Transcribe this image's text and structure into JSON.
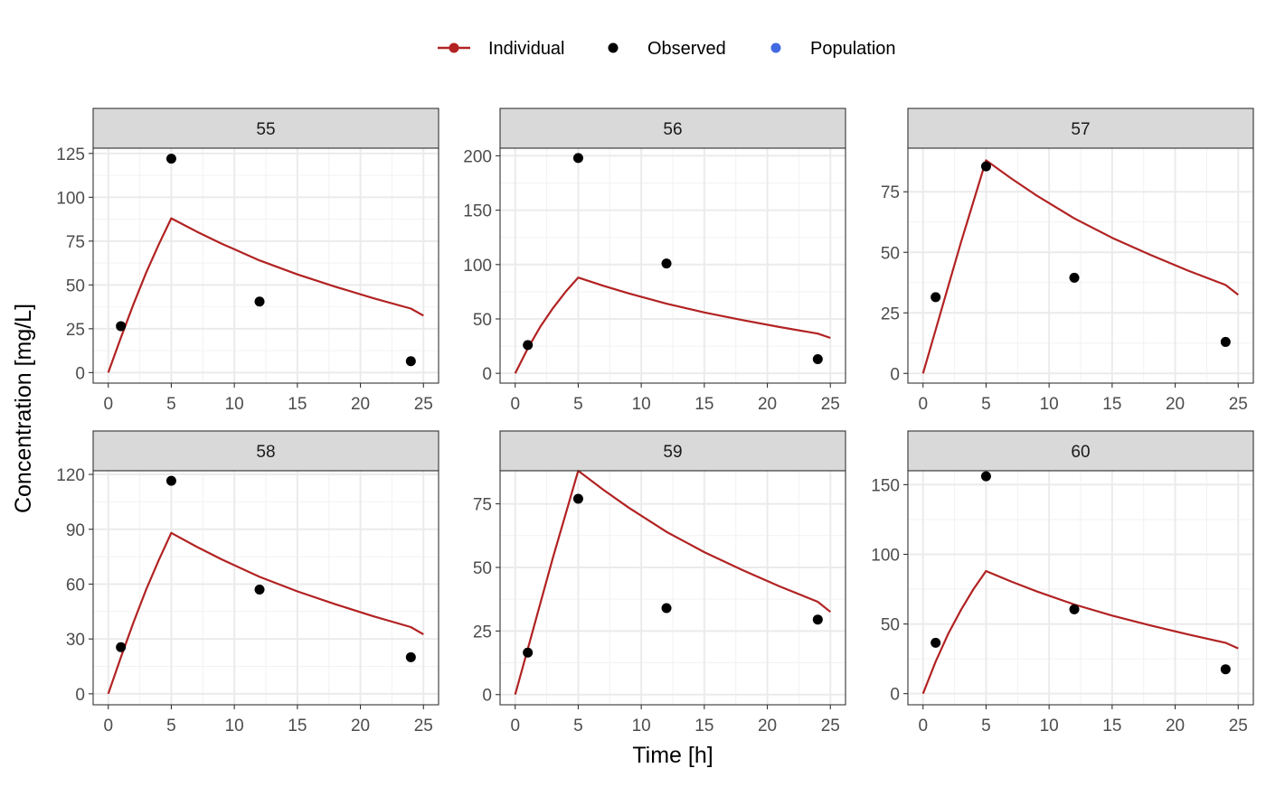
{
  "chart_data": {
    "type": "line",
    "xlabel": "Time [h]",
    "ylabel": "Concentration [mg/L]",
    "grid": true,
    "legend_position": "top",
    "legend": [
      {
        "label": "Individual",
        "color": "#b22222",
        "kind": "line-point"
      },
      {
        "label": "Observed",
        "color": "#000000",
        "kind": "point"
      },
      {
        "label": "Population",
        "color": "#4169e1",
        "kind": "point"
      }
    ],
    "xlim": [
      -1.2,
      26.2
    ],
    "xticks": [
      0,
      5,
      10,
      15,
      20,
      25
    ],
    "panels": [
      {
        "title": "55",
        "ylim": [
          -6,
          128
        ],
        "yticks": [
          0,
          25,
          50,
          75,
          100,
          125
        ],
        "individual": {
          "x": [
            0,
            1,
            2,
            3,
            4,
            5,
            7,
            9,
            12,
            15,
            18,
            21,
            24,
            25
          ],
          "y": [
            0,
            20,
            39,
            57,
            73,
            88,
            80.5,
            73.5,
            64,
            56,
            49,
            42.5,
            36.5,
            32.5
          ]
        },
        "observed": {
          "x": [
            1,
            5,
            12,
            24
          ],
          "y": [
            26.5,
            122,
            40.5,
            6.5
          ]
        },
        "population": {
          "x": [],
          "y": []
        }
      },
      {
        "title": "56",
        "ylim": [
          -9,
          207
        ],
        "yticks": [
          0,
          50,
          100,
          150,
          200
        ],
        "individual": {
          "x": [
            0,
            1,
            2,
            3,
            4,
            5,
            7,
            9,
            12,
            15,
            18,
            21,
            24,
            25
          ],
          "y": [
            0,
            23,
            43,
            60,
            75,
            88,
            80.5,
            73.5,
            64,
            56,
            49,
            42.5,
            36.5,
            32.5
          ]
        },
        "observed": {
          "x": [
            1,
            5,
            12,
            24
          ],
          "y": [
            26,
            198,
            101,
            13
          ]
        },
        "population": {
          "x": [],
          "y": []
        }
      },
      {
        "title": "57",
        "ylim": [
          -4,
          93
        ],
        "yticks": [
          0,
          25,
          50,
          75
        ],
        "individual": {
          "x": [
            0,
            1,
            2,
            3,
            4,
            5,
            7,
            9,
            12,
            15,
            18,
            21,
            24,
            25
          ],
          "y": [
            0,
            18,
            36,
            54,
            71,
            88,
            80.5,
            73.5,
            64,
            56,
            49,
            42.5,
            36.5,
            32.5
          ]
        },
        "observed": {
          "x": [
            1,
            5,
            12,
            24
          ],
          "y": [
            31.5,
            85.5,
            39.5,
            13
          ]
        },
        "population": {
          "x": [],
          "y": []
        }
      },
      {
        "title": "58",
        "ylim": [
          -6,
          122
        ],
        "yticks": [
          0,
          30,
          60,
          90,
          120
        ],
        "individual": {
          "x": [
            0,
            1,
            2,
            3,
            4,
            5,
            7,
            9,
            12,
            15,
            18,
            21,
            24,
            25
          ],
          "y": [
            0,
            20,
            39,
            57,
            73,
            88,
            80.5,
            73.5,
            64,
            56,
            49,
            42.5,
            36.5,
            32.5
          ]
        },
        "observed": {
          "x": [
            1,
            5,
            12,
            24
          ],
          "y": [
            25.5,
            116.5,
            57,
            20
          ]
        },
        "population": {
          "x": [],
          "y": []
        }
      },
      {
        "title": "59",
        "ylim": [
          -4,
          88
        ],
        "yticks": [
          0,
          25,
          50,
          75
        ],
        "individual": {
          "x": [
            0,
            1,
            2,
            3,
            4,
            5,
            7,
            9,
            12,
            15,
            18,
            21,
            24,
            25
          ],
          "y": [
            0,
            18,
            36,
            54,
            71,
            88,
            80.5,
            73.5,
            64,
            56,
            49,
            42.5,
            36.5,
            32.5
          ]
        },
        "observed": {
          "x": [
            1,
            5,
            12,
            24
          ],
          "y": [
            16.5,
            77,
            34,
            29.5
          ]
        },
        "population": {
          "x": [],
          "y": []
        }
      },
      {
        "title": "60",
        "ylim": [
          -8,
          160
        ],
        "yticks": [
          0,
          50,
          100,
          150
        ],
        "individual": {
          "x": [
            0,
            1,
            2,
            3,
            4,
            5,
            7,
            9,
            12,
            15,
            18,
            21,
            24,
            25
          ],
          "y": [
            0,
            23,
            43,
            60,
            75,
            88,
            80.5,
            73.5,
            64,
            56,
            49,
            42.5,
            36.5,
            32.5
          ]
        },
        "observed": {
          "x": [
            1,
            5,
            12,
            24
          ],
          "y": [
            36.5,
            156,
            60.5,
            17.5
          ]
        },
        "population": {
          "x": [],
          "y": []
        }
      }
    ]
  }
}
